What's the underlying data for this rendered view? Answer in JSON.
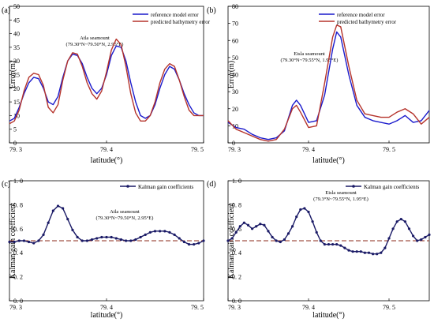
{
  "chart_data": [
    {
      "type": "line",
      "panel_label": "(a)",
      "annotation": "Atla seamount",
      "annotation_2": "(79.30°N~79.50°N, 2.95°E)",
      "xlabel": "latitude(°)",
      "ylabel": "Error(m)",
      "xlim": [
        79.3,
        79.5
      ],
      "ylim": [
        0,
        50
      ],
      "xticks": [
        79.3,
        79.4,
        79.5
      ],
      "xtick_labels": [
        "79. 3",
        "79. 4",
        "79. 5"
      ],
      "yticks": [
        0,
        5,
        10,
        15,
        20,
        25,
        30,
        35,
        40,
        45,
        50
      ],
      "ytick_labels": [
        "0",
        "5",
        "10",
        "15",
        "20",
        "25",
        "30",
        "35",
        "40",
        "45",
        "50"
      ],
      "legend_position": "top-right",
      "grid": false,
      "series": [
        {
          "name": "reference model error",
          "color": "#1a1acc",
          "x": [
            79.3,
            79.305,
            79.31,
            79.315,
            79.32,
            79.325,
            79.33,
            79.335,
            79.34,
            79.345,
            79.35,
            79.355,
            79.36,
            79.365,
            79.37,
            79.375,
            79.38,
            79.385,
            79.39,
            79.395,
            79.4,
            79.405,
            79.41,
            79.415,
            79.42,
            79.425,
            79.43,
            79.435,
            79.44,
            79.445,
            79.45,
            79.455,
            79.46,
            79.465,
            79.47,
            79.475,
            79.48,
            79.485,
            79.49,
            79.495,
            79.5
          ],
          "y": [
            8,
            9,
            13,
            18,
            22,
            24,
            23.5,
            20,
            15,
            14,
            17,
            24,
            30,
            32.5,
            32,
            29,
            24,
            20,
            18,
            20,
            25,
            32,
            35.5,
            35,
            30,
            22,
            15,
            10,
            9,
            10,
            14,
            20,
            25,
            28,
            27,
            23,
            18,
            14,
            11,
            10,
            10
          ]
        },
        {
          "name": "predicted bathymetry error",
          "color": "#b5332b",
          "x": [
            79.3,
            79.305,
            79.31,
            79.315,
            79.32,
            79.325,
            79.33,
            79.335,
            79.34,
            79.345,
            79.35,
            79.355,
            79.36,
            79.365,
            79.37,
            79.375,
            79.38,
            79.385,
            79.39,
            79.395,
            79.4,
            79.405,
            79.41,
            79.415,
            79.42,
            79.425,
            79.43,
            79.435,
            79.44,
            79.445,
            79.45,
            79.455,
            79.46,
            79.465,
            79.47,
            79.475,
            79.48,
            79.485,
            79.49,
            79.495,
            79.5
          ],
          "y": [
            7,
            8,
            12,
            19,
            24,
            25.5,
            25,
            21,
            13,
            11,
            14,
            23,
            30,
            33,
            32.5,
            28,
            22,
            18,
            16,
            19,
            26,
            34,
            38,
            36,
            28,
            18,
            11,
            8,
            8,
            10,
            15,
            22,
            27,
            29,
            28,
            23,
            17,
            12,
            10,
            10,
            10
          ]
        }
      ]
    },
    {
      "type": "line",
      "panel_label": "(b)",
      "annotation": "Eisla seamount",
      "annotation_2": "(79.30°N~79.55°N, 1.95°E)",
      "xlabel": "latitude(°)",
      "ylabel": "Error(m)",
      "xlim": [
        79.3,
        79.55
      ],
      "ylim": [
        0,
        80
      ],
      "xticks": [
        79.3,
        79.4,
        79.5
      ],
      "xtick_labels": [
        "79. 3",
        "79. 4",
        "79. 5"
      ],
      "yticks": [
        0,
        10,
        20,
        30,
        40,
        50,
        60,
        70,
        80
      ],
      "ytick_labels": [
        "0",
        "10",
        "20",
        "30",
        "40",
        "50",
        "60",
        "70",
        "80"
      ],
      "legend_position": "top-right",
      "grid": false,
      "series": [
        {
          "name": "reference model error",
          "color": "#1a1acc",
          "x": [
            79.3,
            79.31,
            79.32,
            79.33,
            79.34,
            79.35,
            79.36,
            79.37,
            79.38,
            79.385,
            79.39,
            79.4,
            79.41,
            79.42,
            79.43,
            79.435,
            79.44,
            79.45,
            79.46,
            79.47,
            79.48,
            79.49,
            79.5,
            79.51,
            79.52,
            79.53,
            79.54,
            79.55
          ],
          "y": [
            12,
            9,
            8,
            5,
            3,
            2,
            3,
            7,
            22,
            25,
            22,
            12,
            13,
            28,
            55,
            65,
            62,
            40,
            22,
            15,
            13,
            12,
            11,
            13,
            16,
            12,
            13,
            19
          ]
        },
        {
          "name": "predicted bathymetry error",
          "color": "#b5332b",
          "x": [
            79.3,
            79.31,
            79.32,
            79.33,
            79.34,
            79.35,
            79.36,
            79.37,
            79.38,
            79.385,
            79.39,
            79.4,
            79.41,
            79.42,
            79.43,
            79.435,
            79.44,
            79.45,
            79.46,
            79.47,
            79.48,
            79.49,
            79.5,
            79.51,
            79.52,
            79.53,
            79.54,
            79.55
          ],
          "y": [
            13,
            8,
            6,
            4,
            2,
            1,
            2,
            8,
            20,
            22,
            18,
            9,
            10,
            35,
            62,
            69,
            68,
            45,
            25,
            17,
            16,
            15,
            15,
            18,
            20,
            17,
            11,
            15
          ]
        }
      ]
    },
    {
      "type": "line",
      "panel_label": "(c)",
      "annotation": "Atla seamount",
      "annotation_2": "(79.30°N~79.50°N,  2.95°E)",
      "xlabel": "latitude(°)",
      "ylabel": "Kalman gain coefficient",
      "xlim": [
        79.3,
        79.5
      ],
      "ylim": [
        0,
        1.0
      ],
      "xticks": [
        79.3,
        79.4,
        79.5
      ],
      "xtick_labels": [
        "79. 3",
        "79. 4",
        "79. 5"
      ],
      "yticks": [
        0,
        0.2,
        0.4,
        0.6,
        0.8,
        1.0
      ],
      "ytick_labels": [
        "0. 0",
        "0. 2",
        "0. 4",
        "0. 6",
        "0. 8",
        "1. 0"
      ],
      "legend_position": "top-right",
      "grid": false,
      "reference_line": 0.5,
      "series": [
        {
          "name": "Kalman gain coefficients",
          "color": "#1a1a66",
          "marker": "dot",
          "x": [
            79.3,
            79.305,
            79.31,
            79.315,
            79.32,
            79.325,
            79.33,
            79.335,
            79.34,
            79.345,
            79.35,
            79.355,
            79.36,
            79.365,
            79.37,
            79.375,
            79.38,
            79.385,
            79.39,
            79.395,
            79.4,
            79.405,
            79.41,
            79.415,
            79.42,
            79.425,
            79.43,
            79.435,
            79.44,
            79.445,
            79.45,
            79.455,
            79.46,
            79.465,
            79.47,
            79.475,
            79.48,
            79.485,
            79.49,
            79.495,
            79.5
          ],
          "y": [
            0.49,
            0.49,
            0.5,
            0.5,
            0.49,
            0.48,
            0.5,
            0.55,
            0.65,
            0.75,
            0.79,
            0.77,
            0.68,
            0.59,
            0.53,
            0.5,
            0.5,
            0.51,
            0.52,
            0.53,
            0.53,
            0.53,
            0.52,
            0.51,
            0.5,
            0.5,
            0.51,
            0.53,
            0.55,
            0.57,
            0.58,
            0.58,
            0.58,
            0.57,
            0.55,
            0.52,
            0.49,
            0.47,
            0.47,
            0.48,
            0.5
          ]
        }
      ]
    },
    {
      "type": "line",
      "panel_label": "(d)",
      "annotation": "Eisla seamount",
      "annotation_2": "(79.3°N~79.55°N, 1.95°E)",
      "xlabel": "latitude(°)",
      "ylabel": "Kalman gain coefficient",
      "xlim": [
        79.3,
        79.55
      ],
      "ylim": [
        0,
        1.0
      ],
      "xticks": [
        79.3,
        79.4,
        79.5
      ],
      "xtick_labels": [
        "79. 3",
        "79. 4",
        "79. 5"
      ],
      "yticks": [
        0,
        0.2,
        0.4,
        0.6,
        0.8,
        1.0
      ],
      "ytick_labels": [
        "0. 0",
        "0. 2",
        "0. 4",
        "0. 6",
        "0. 8",
        "1. 0"
      ],
      "legend_position": "top-right",
      "grid": false,
      "reference_line": 0.5,
      "series": [
        {
          "name": "Kalman gain coefficients",
          "color": "#1a1a66",
          "marker": "dot",
          "x": [
            79.3,
            79.305,
            79.31,
            79.315,
            79.32,
            79.325,
            79.33,
            79.335,
            79.34,
            79.345,
            79.35,
            79.355,
            79.36,
            79.365,
            79.37,
            79.375,
            79.38,
            79.385,
            79.39,
            79.395,
            79.4,
            79.405,
            79.41,
            79.415,
            79.42,
            79.425,
            79.43,
            79.435,
            79.44,
            79.445,
            79.45,
            79.455,
            79.46,
            79.465,
            79.47,
            79.475,
            79.48,
            79.485,
            79.49,
            79.495,
            79.5,
            79.505,
            79.51,
            79.515,
            79.52,
            79.525,
            79.53,
            79.535,
            79.54,
            79.545,
            79.55
          ],
          "y": [
            0.5,
            0.52,
            0.57,
            0.62,
            0.65,
            0.63,
            0.6,
            0.62,
            0.64,
            0.63,
            0.58,
            0.53,
            0.5,
            0.49,
            0.51,
            0.56,
            0.62,
            0.7,
            0.76,
            0.77,
            0.74,
            0.66,
            0.57,
            0.5,
            0.47,
            0.47,
            0.47,
            0.47,
            0.46,
            0.44,
            0.42,
            0.41,
            0.41,
            0.41,
            0.4,
            0.4,
            0.39,
            0.39,
            0.4,
            0.44,
            0.52,
            0.6,
            0.66,
            0.68,
            0.66,
            0.6,
            0.54,
            0.5,
            0.51,
            0.53,
            0.55
          ]
        }
      ]
    }
  ]
}
